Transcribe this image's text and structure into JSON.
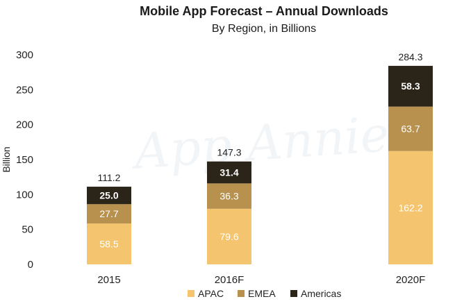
{
  "chart_data": {
    "type": "bar",
    "stacked": true,
    "title": "Mobile App Forecast – Annual Downloads",
    "subtitle": "By Region, in Billions",
    "xlabel": "",
    "ylabel": "Billion",
    "ylim": [
      0,
      300
    ],
    "yticks": [
      "0",
      "50",
      "100",
      "150",
      "200",
      "250",
      "300"
    ],
    "categories": [
      "2015",
      "2016F",
      "2020F"
    ],
    "series": [
      {
        "name": "APAC",
        "color": "#f5c46f",
        "values": [
          58.5,
          79.6,
          162.2
        ],
        "labels": [
          "58.5",
          "79.6",
          "162.2"
        ]
      },
      {
        "name": "EMEA",
        "color": "#b8914e",
        "values": [
          27.7,
          36.3,
          63.7
        ],
        "labels": [
          "27.7",
          "36.3",
          "63.7"
        ]
      },
      {
        "name": "Americas",
        "color": "#2b2418",
        "values": [
          25.0,
          31.4,
          58.3
        ],
        "labels": [
          "25.0",
          "31.4",
          "58.3"
        ]
      }
    ],
    "totals": [
      "111.2",
      "147.3",
      "284.3"
    ],
    "legend_position": "bottom-center",
    "watermark": "App Annie"
  }
}
